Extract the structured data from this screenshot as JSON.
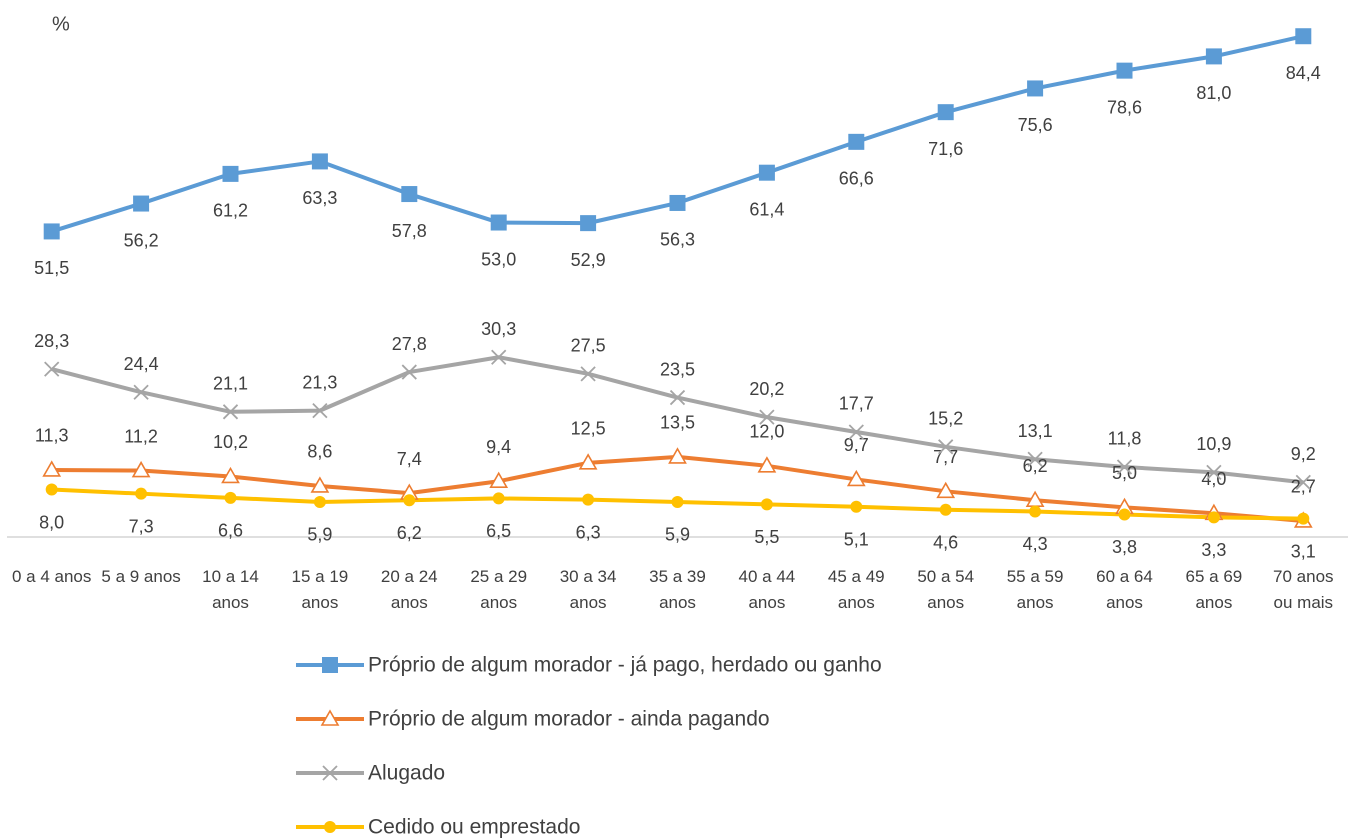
{
  "chart_data": {
    "type": "line",
    "y_label": "%",
    "categories": [
      "0 a 4 anos",
      "5 a 9 anos",
      "10 a 14 anos",
      "15 a 19 anos",
      "20 a 24 anos",
      "25 a 29 anos",
      "30 a 34 anos",
      "35 a 39 anos",
      "40 a 44 anos",
      "45 a 49 anos",
      "50 a 54 anos",
      "55 a 59 anos",
      "60 a 64 anos",
      "65 a 69 anos",
      "70 anos ou mais"
    ],
    "ylim": [
      0,
      90
    ],
    "legend": "bottom",
    "series": [
      {
        "name": "Próprio de algum morador - já pago, herdado ou ganho",
        "color": "#5b9bd5",
        "marker": "square",
        "values": [
          51.5,
          56.2,
          61.2,
          63.3,
          57.8,
          53.0,
          52.9,
          56.3,
          61.4,
          66.6,
          71.6,
          75.6,
          78.6,
          81.0,
          84.4
        ],
        "value_labels": [
          "51,5",
          "56,2",
          "61,2",
          "63,3",
          "57,8",
          "53,0",
          "52,9",
          "56,3",
          "61,4",
          "66,6",
          "71,6",
          "75,6",
          "78,6",
          "81,0",
          "84,4"
        ]
      },
      {
        "name": "Próprio de algum morador - ainda pagando",
        "color": "#ed7d31",
        "marker": "triangle",
        "values": [
          11.3,
          11.2,
          10.2,
          8.6,
          7.4,
          9.4,
          12.5,
          13.5,
          12.0,
          9.7,
          7.7,
          6.2,
          5.0,
          4.0,
          2.7
        ],
        "value_labels": [
          "11,3",
          "11,2",
          "10,2",
          "8,6",
          "7,4",
          "9,4",
          "12,5",
          "13,5",
          "12,0",
          "9,7",
          "7,7",
          "6,2",
          "5,0",
          "4,0",
          "2,7"
        ]
      },
      {
        "name": "Alugado",
        "color": "#a5a5a5",
        "marker": "x",
        "values": [
          28.3,
          24.4,
          21.1,
          21.3,
          27.8,
          30.3,
          27.5,
          23.5,
          20.2,
          17.7,
          15.2,
          13.1,
          11.8,
          10.9,
          9.2
        ],
        "value_labels": [
          "28,3",
          "24,4",
          "21,1",
          "21,3",
          "27,8",
          "30,3",
          "27,5",
          "23,5",
          "20,2",
          "17,7",
          "15,2",
          "13,1",
          "11,8",
          "10,9",
          "9,2"
        ]
      },
      {
        "name": "Cedido ou emprestado",
        "color": "#ffc000",
        "marker": "circle",
        "values": [
          8.0,
          7.3,
          6.6,
          5.9,
          6.2,
          6.5,
          6.3,
          5.9,
          5.5,
          5.1,
          4.6,
          4.3,
          3.8,
          3.3,
          3.1
        ],
        "value_labels": [
          "8,0",
          "7,3",
          "6,6",
          "5,9",
          "6,2",
          "6,5",
          "6,3",
          "5,9",
          "5,5",
          "5,1",
          "4,6",
          "4,3",
          "3,8",
          "3,3",
          "3,1"
        ]
      }
    ]
  }
}
